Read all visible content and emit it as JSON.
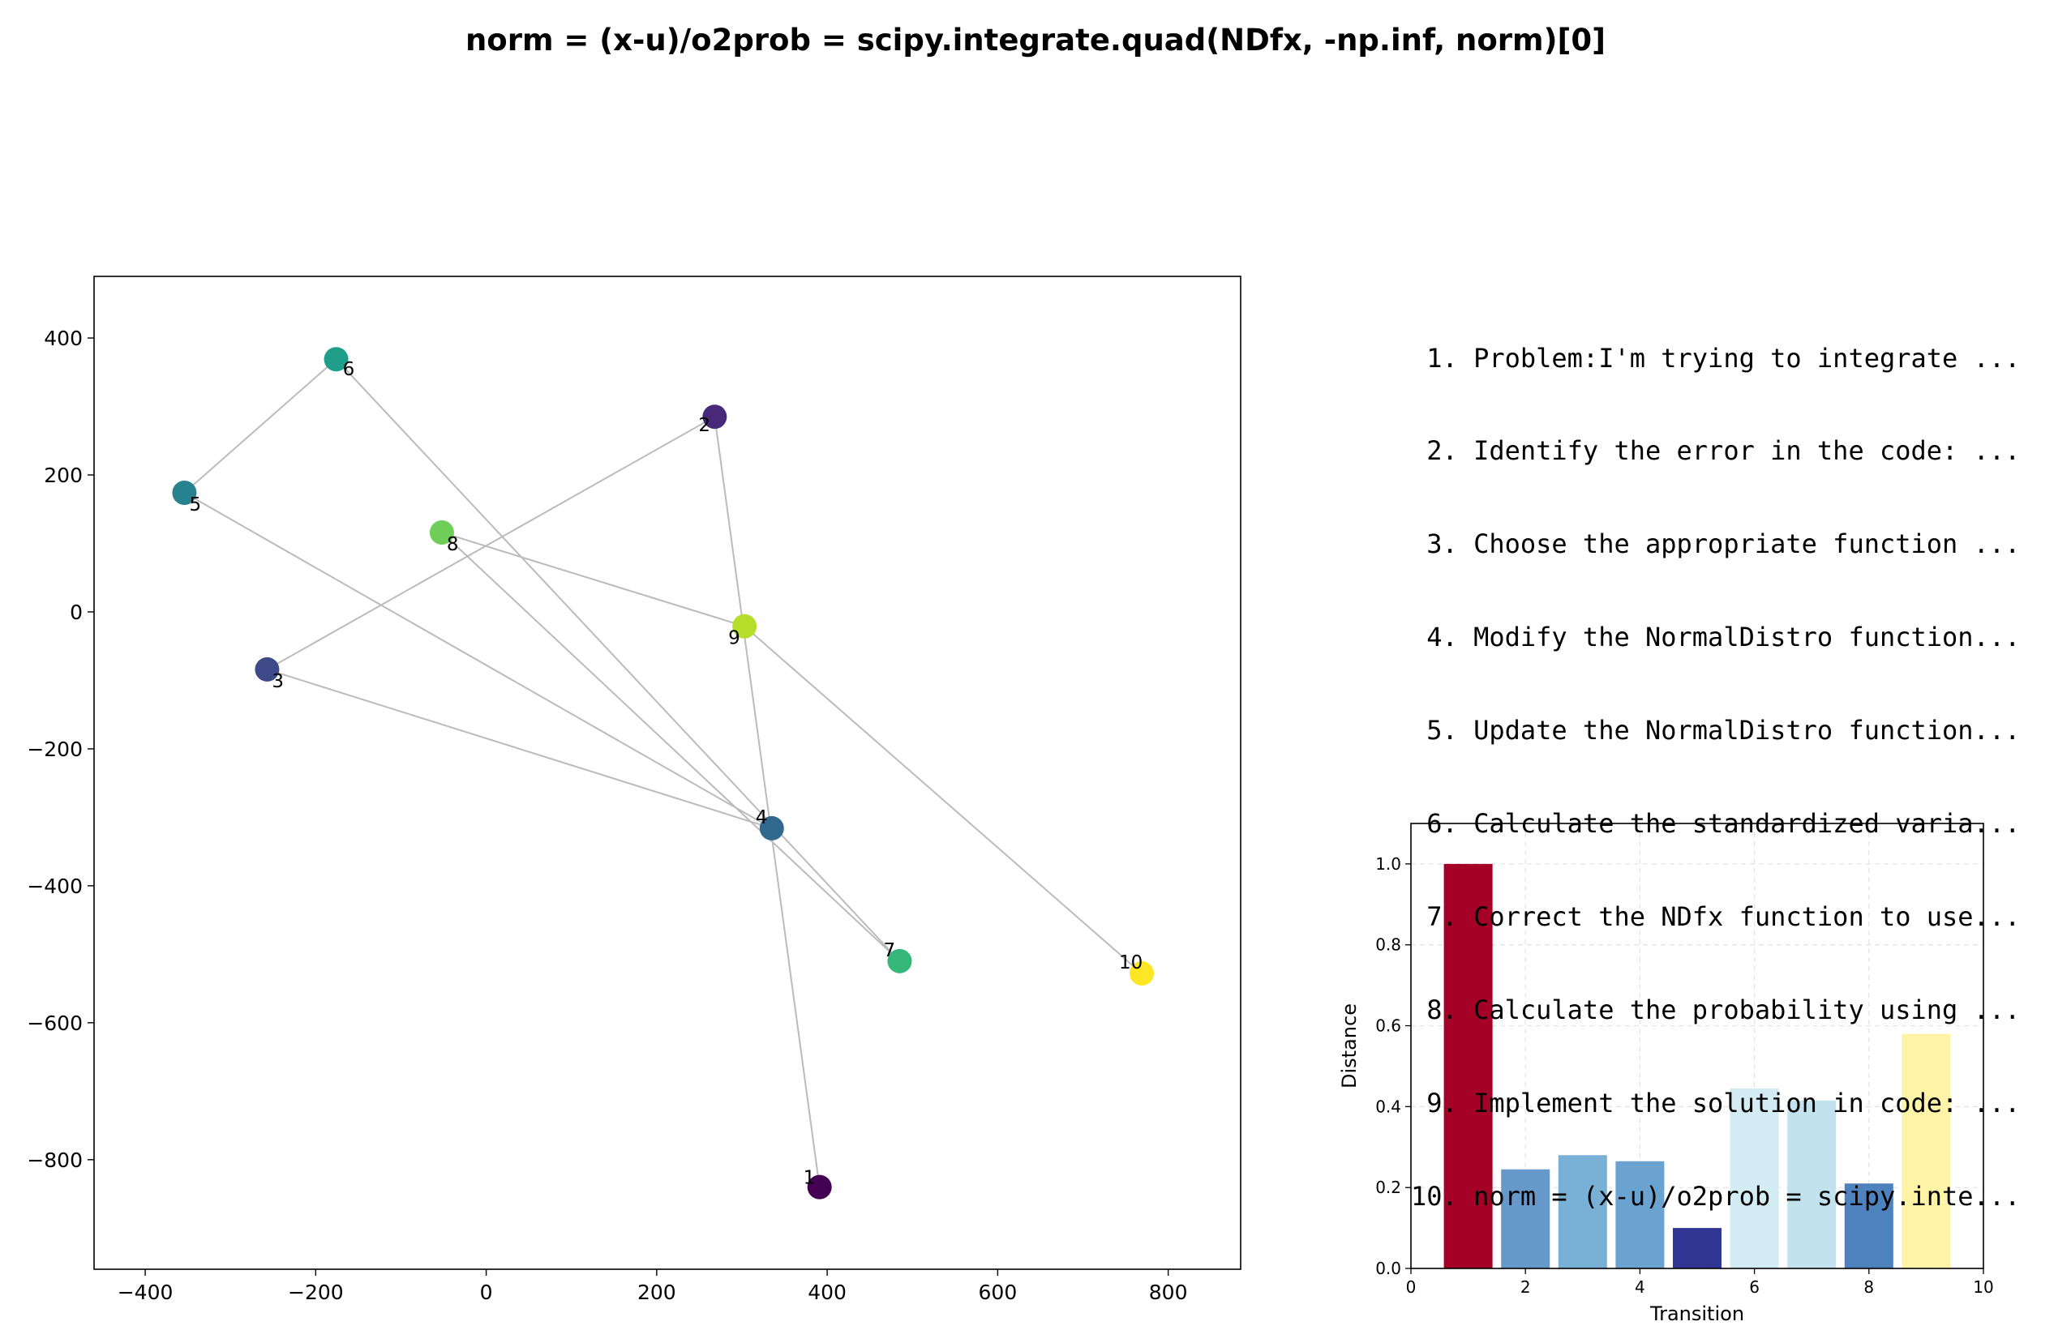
{
  "title": "norm = (x-u)/o2prob = scipy.integrate.quad(NDfx, -np.inf, norm)[0]",
  "steps": [
    " 1. Problem:I'm trying to integrate ...",
    " 2. Identify the error in the code: ...",
    " 3. Choose the appropriate function ...",
    " 4. Modify the NormalDistro function...",
    " 5. Update the NormalDistro function...",
    " 6. Calculate the standardized varia...",
    " 7. Correct the NDfx function to use...",
    " 8. Calculate the probability using ...",
    " 9. Implement the solution in code: ...",
    "10. norm = (x-u)/o2prob = scipy.inte..."
  ],
  "chart_data": [
    {
      "type": "scatter",
      "title": "",
      "xlabel": "",
      "ylabel": "",
      "xlim": [
        -460,
        885
      ],
      "ylim": [
        -960,
        490
      ],
      "xticks": [
        -400,
        -200,
        0,
        200,
        400,
        600,
        800
      ],
      "yticks": [
        400,
        200,
        0,
        -200,
        -400,
        -600,
        -800
      ],
      "xtick_labels": [
        "−400",
        "−200",
        "0",
        "200",
        "400",
        "600",
        "800"
      ],
      "ytick_labels": [
        "400",
        "200",
        "0",
        "−200",
        "−400",
        "−600",
        "−800"
      ],
      "grid": false,
      "points": [
        {
          "label": "1",
          "x": 391,
          "y": -840,
          "color": "#440154"
        },
        {
          "label": "2",
          "x": 268,
          "y": 285,
          "color": "#482878"
        },
        {
          "label": "3",
          "x": -257,
          "y": -84,
          "color": "#3e4989"
        },
        {
          "label": "4",
          "x": 335,
          "y": -316,
          "color": "#31688e"
        },
        {
          "label": "5",
          "x": -354,
          "y": 174,
          "color": "#26828e"
        },
        {
          "label": "6",
          "x": -176,
          "y": 369,
          "color": "#1f9e89"
        },
        {
          "label": "7",
          "x": 485,
          "y": -510,
          "color": "#35b779"
        },
        {
          "label": "8",
          "x": -52,
          "y": 116,
          "color": "#6ece58"
        },
        {
          "label": "9",
          "x": 303,
          "y": -21,
          "color": "#b5de2b"
        },
        {
          "label": "10",
          "x": 769,
          "y": -528,
          "color": "#fde725"
        }
      ],
      "path_order": [
        1,
        2,
        3,
        4,
        5,
        6,
        7,
        8,
        9,
        10
      ],
      "line_color": "#bbbbbb"
    },
    {
      "type": "bar",
      "title": "",
      "xlabel": "Transition",
      "ylabel": "Distance",
      "xlim": [
        0,
        10
      ],
      "ylim": [
        0,
        1.1
      ],
      "xticks": [
        0,
        2,
        4,
        6,
        8,
        10
      ],
      "yticks": [
        0.0,
        0.2,
        0.4,
        0.6,
        0.8,
        1.0
      ],
      "ytick_labels": [
        "0.0",
        "0.2",
        "0.4",
        "0.6",
        "0.8",
        "1.0"
      ],
      "grid": true,
      "categories": [
        1,
        2,
        3,
        4,
        5,
        6,
        7,
        8,
        9
      ],
      "values": [
        1.0,
        0.245,
        0.28,
        0.265,
        0.1,
        0.445,
        0.415,
        0.21,
        0.58
      ],
      "colors": [
        "#a50026",
        "#6699c9",
        "#78b0d6",
        "#6aa3cf",
        "#313695",
        "#d3ebf3",
        "#c2e2ee",
        "#4e82be",
        "#fff3a8"
      ]
    }
  ]
}
